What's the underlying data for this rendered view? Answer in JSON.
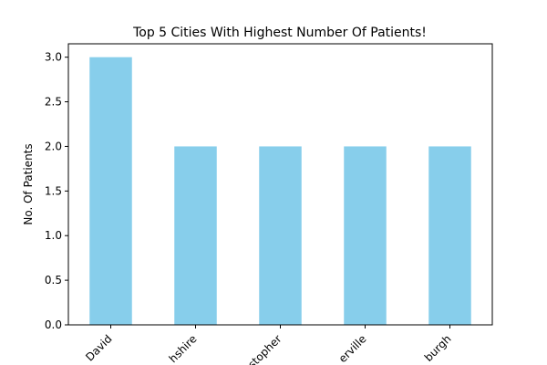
{
  "chart_data": {
    "type": "bar",
    "title": "Top 5 Cities With Highest Number Of Patients!",
    "xlabel": "",
    "ylabel": "No. Of Patients",
    "categories": [
      "David",
      "hshire",
      "stopher",
      "erville",
      "burgh"
    ],
    "values": [
      3,
      2,
      2,
      2,
      2
    ],
    "ylim": [
      0,
      3.15
    ],
    "yticks": [
      0.0,
      0.5,
      1.0,
      1.5,
      2.0,
      2.5,
      3.0
    ],
    "ytick_labels": [
      "0.0",
      "0.5",
      "1.0",
      "1.5",
      "2.0",
      "2.5",
      "3.0"
    ],
    "xtick_rotation": 45,
    "bar_color": "#87ceeb",
    "grid": false,
    "legend": false
  }
}
